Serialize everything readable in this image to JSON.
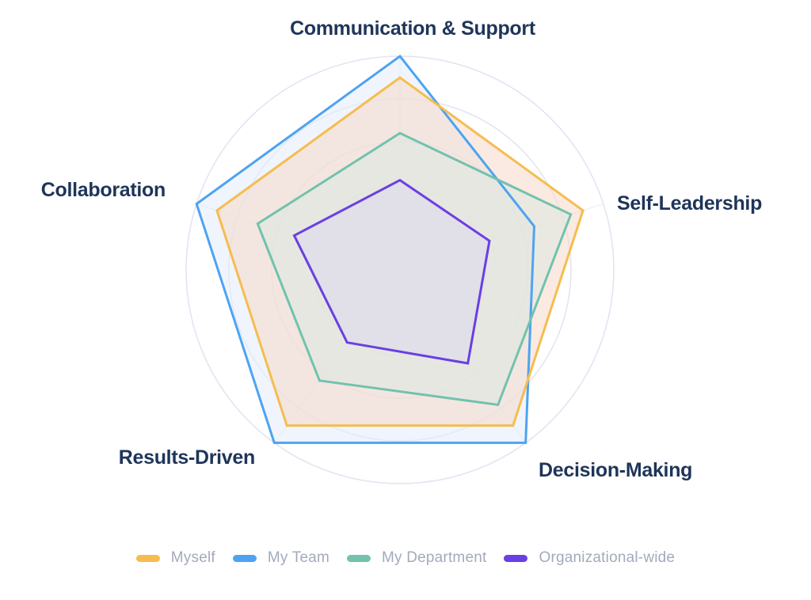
{
  "chart_data": {
    "type": "radar",
    "title": "",
    "axes": [
      "Communication & Support",
      "Self-Leadership",
      "Decision-Making",
      "Results-Driven",
      "Collaboration"
    ],
    "r_range": [
      0,
      5
    ],
    "rings": 5,
    "grid": true,
    "legend_position": "bottom",
    "series": [
      {
        "name": "Myself",
        "color": "#f5bd4f",
        "fill": "#f6d9c8",
        "values": [
          4.5,
          4.5,
          4.5,
          4.5,
          4.5
        ]
      },
      {
        "name": "My Team",
        "color": "#4ea3f1",
        "fill": "#e4ecfb",
        "values": [
          5.0,
          3.3,
          5.0,
          5.0,
          5.0
        ]
      },
      {
        "name": "My Department",
        "color": "#72c2ad",
        "fill": "#dde7e2",
        "values": [
          3.2,
          4.2,
          3.9,
          3.2,
          3.5
        ]
      },
      {
        "name": "Organizational-wide",
        "color": "#6a3fe3",
        "fill": "#dcd8ee",
        "values": [
          2.1,
          2.2,
          2.7,
          2.1,
          2.6
        ]
      }
    ]
  }
}
